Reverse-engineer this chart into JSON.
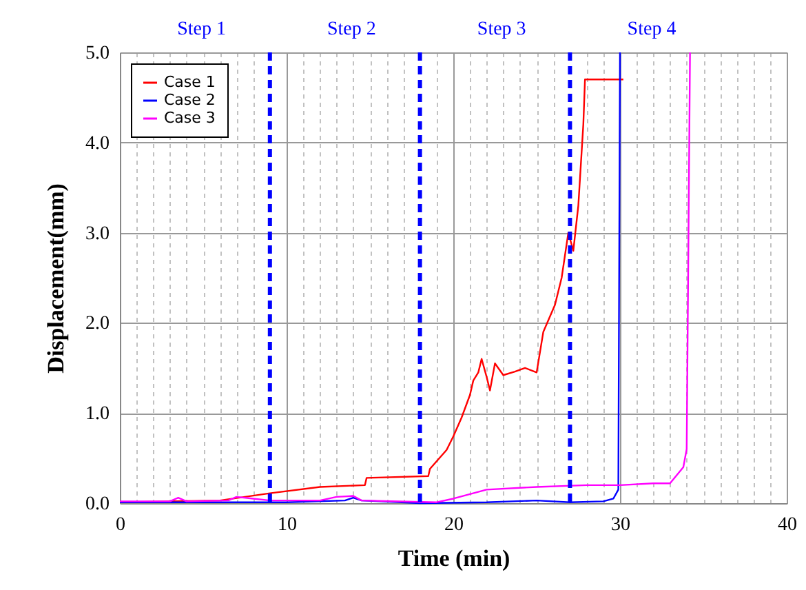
{
  "chart_data": {
    "type": "line",
    "xlabel": "Time (min)",
    "ylabel": "Displacement(mm)",
    "annotations": [
      "Step 1",
      "Step 2",
      "Step 3",
      "Step 4"
    ],
    "xlim": [
      0,
      40
    ],
    "ylim": [
      0,
      5
    ],
    "xticks": [
      0,
      {
        "value": 1,
        "label": null
      },
      {
        "value": 2,
        "label": null
      },
      {
        "value": 3,
        "label": null
      },
      {
        "value": 4,
        "label": null
      },
      {
        "value": 5,
        "label": null
      },
      {
        "value": 6,
        "label": null
      },
      {
        "value": 7,
        "label": null
      },
      {
        "value": 8,
        "label": null
      },
      10,
      {
        "value": 11,
        "label": null
      },
      {
        "value": 12,
        "label": null
      },
      {
        "value": 13,
        "label": null
      },
      {
        "value": 14,
        "label": null
      },
      {
        "value": 15,
        "label": null
      },
      {
        "value": 16,
        "label": null
      },
      {
        "value": 17,
        "label": null
      },
      {
        "value": 19,
        "label": null
      },
      20,
      {
        "value": 21,
        "label": null
      },
      {
        "value": 22,
        "label": null
      },
      {
        "value": 23,
        "label": null
      },
      {
        "value": 24,
        "label": null
      },
      {
        "value": 25,
        "label": null
      },
      {
        "value": 26,
        "label": null
      },
      {
        "value": 28,
        "label": null
      },
      {
        "value": 29,
        "label": null
      },
      30,
      {
        "value": 31,
        "label": null
      },
      {
        "value": 32,
        "label": null
      },
      {
        "value": 33,
        "label": null
      },
      {
        "value": 34,
        "label": null
      },
      {
        "value": 35,
        "label": null
      },
      {
        "value": 36,
        "label": null
      },
      {
        "value": 37,
        "label": null
      },
      {
        "value": 38,
        "label": null
      },
      {
        "value": 39,
        "label": null
      },
      40
    ],
    "yticks": [
      {
        "value": 0,
        "label": "0.0"
      },
      {
        "value": 1,
        "label": "1.0"
      },
      {
        "value": 2,
        "label": "2.0"
      },
      {
        "value": 3,
        "label": "3.0"
      },
      {
        "value": 4,
        "label": "4.0"
      },
      {
        "value": 5,
        "label": "5.0"
      }
    ],
    "grid": true,
    "legend": "top left",
    "marker": "none",
    "line_style": "solid",
    "ref_lines": [
      {
        "axis": "x",
        "value": 9,
        "color": "#0000ff",
        "line_style": "dashed"
      },
      {
        "axis": "x",
        "value": 18,
        "color": "#0000ff",
        "line_style": "dashed"
      },
      {
        "axis": "x",
        "value": 27,
        "color": "#0000ff",
        "line_style": "dashed"
      }
    ],
    "series": [
      {
        "name": "Case 1",
        "color": "#ff0000",
        "x": [
          0,
          6,
          9,
          12,
          14.7,
          14.8,
          18.5,
          18.6,
          19.6,
          20,
          20.5,
          21,
          21.2,
          21.5,
          21.7,
          22,
          22.2,
          22.5,
          23,
          23.7,
          24.3,
          25,
          25.4,
          26.1,
          26.5,
          26.9,
          27.2,
          27.5,
          27.8,
          27.9,
          30.2
        ],
        "values": [
          0.01,
          0.03,
          0.11,
          0.18,
          0.2,
          0.28,
          0.3,
          0.38,
          0.59,
          0.74,
          0.95,
          1.2,
          1.36,
          1.45,
          1.6,
          1.4,
          1.25,
          1.55,
          1.42,
          1.46,
          1.5,
          1.45,
          1.9,
          2.2,
          2.5,
          3.0,
          2.8,
          3.3,
          4.2,
          4.7,
          4.7
        ]
      },
      {
        "name": "Case 2",
        "color": "#0000ff",
        "x": [
          0,
          10,
          13.5,
          14,
          14.5,
          18,
          22,
          25,
          27,
          29,
          29.6,
          29.9,
          30
        ],
        "values": [
          0.01,
          0.01,
          0.03,
          0.06,
          0.03,
          0.0,
          0.01,
          0.03,
          0.01,
          0.02,
          0.05,
          0.15,
          5.0
        ]
      },
      {
        "name": "Case 3",
        "color": "#ff00ff",
        "x": [
          0,
          3,
          3.5,
          4,
          6.5,
          7,
          8,
          9,
          12,
          13,
          14,
          14.5,
          19,
          20,
          22,
          25,
          28,
          30,
          32,
          33,
          33.8,
          34,
          34.2
        ],
        "values": [
          0.02,
          0.02,
          0.06,
          0.02,
          0.03,
          0.07,
          0.05,
          0.03,
          0.03,
          0.07,
          0.08,
          0.03,
          0.01,
          0.05,
          0.15,
          0.18,
          0.2,
          0.2,
          0.22,
          0.22,
          0.4,
          0.6,
          5.0
        ]
      }
    ]
  }
}
